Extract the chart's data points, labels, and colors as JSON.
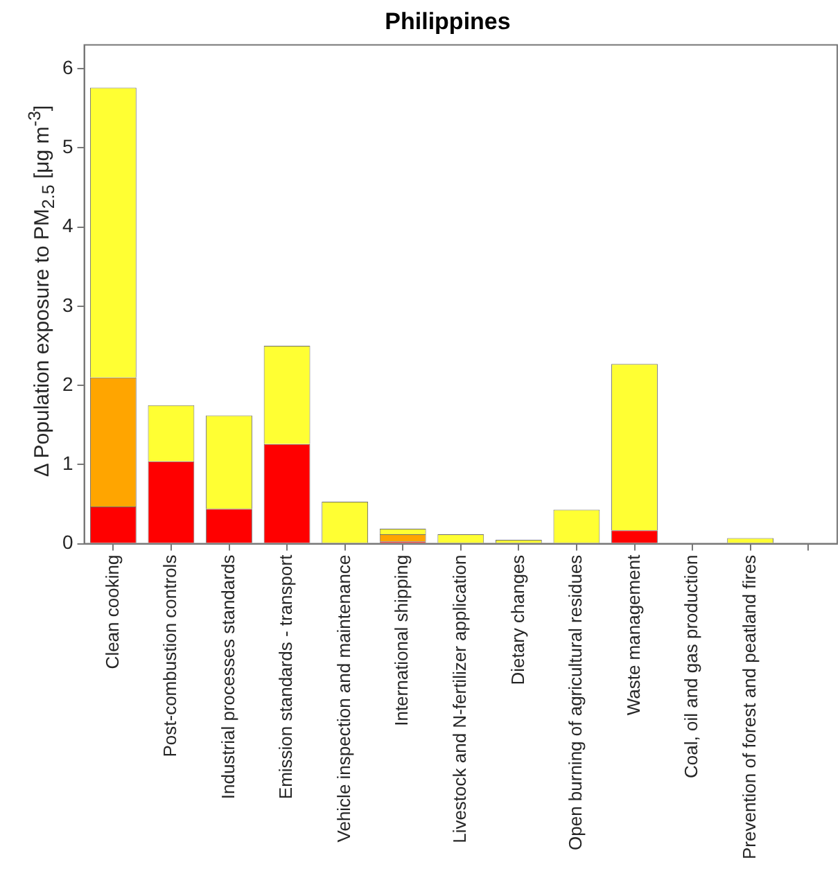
{
  "chart_data": {
    "type": "bar",
    "title": "Philippines",
    "ylabel": "Δ Population exposure to PM$_{2.5}$ [μg m$^{-3}$]",
    "categories": [
      "Clean cooking",
      "Post-combustion controls",
      "Industrial processes standards",
      "Emission standards - transport",
      "Vehicle inspection and maintenance",
      "International shipping",
      "Livestock and N-fertilizer application",
      "Dietary changes",
      "Open burning of agricultural residues",
      "Waste management",
      "Coal, oil and gas production",
      "Prevention of forest and peatland fires",
      null
    ],
    "series": [
      {
        "color": "#ff0000",
        "values": [
          0.47,
          1.04,
          0.44,
          1.26,
          0,
          0.03,
          0,
          0,
          0,
          0.17,
          0,
          0,
          null
        ]
      },
      {
        "color": "#ffa500",
        "values": [
          1.63,
          0,
          0,
          0,
          0,
          0.09,
          0,
          0,
          0,
          0,
          0,
          0,
          null
        ]
      },
      {
        "color": "#ffff33",
        "values": [
          3.66,
          0.71,
          1.18,
          1.24,
          0.53,
          0.07,
          0.12,
          0.05,
          0.43,
          2.1,
          0,
          0.07,
          null
        ]
      }
    ],
    "stacked": true,
    "ylim": [
      0,
      6.3
    ],
    "yticks": [
      0,
      1,
      2,
      3,
      4,
      5,
      6
    ],
    "grid": false,
    "legend": false
  }
}
